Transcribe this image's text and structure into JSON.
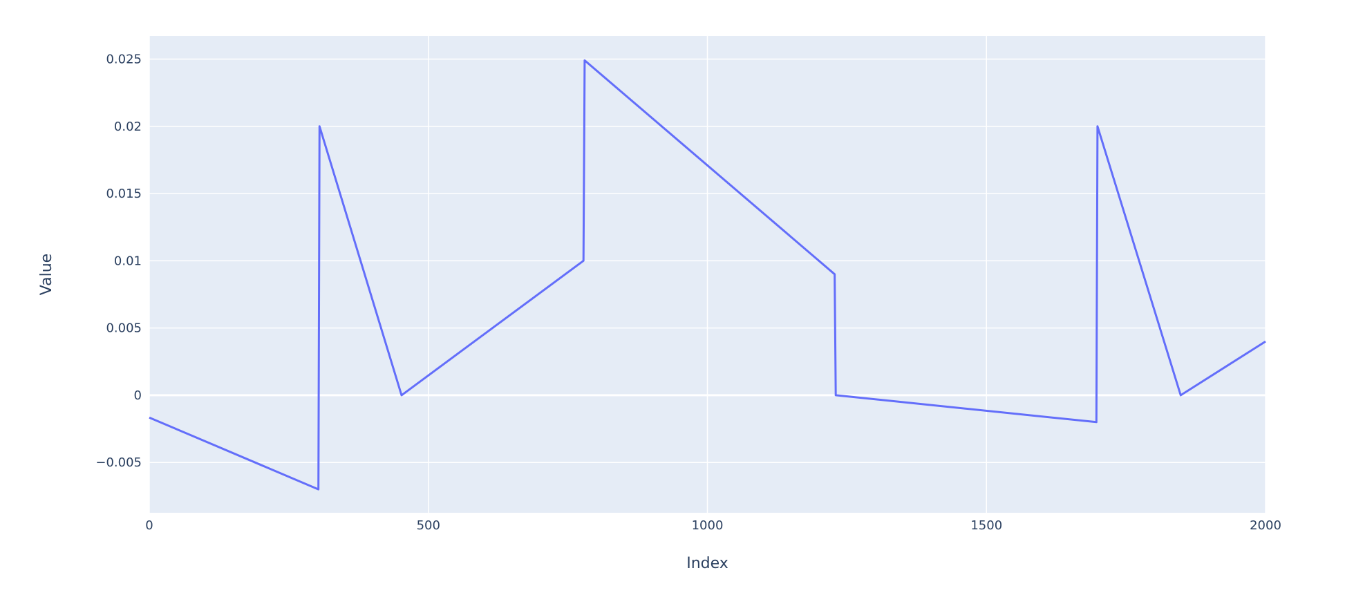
{
  "chart_data": {
    "type": "line",
    "title": "",
    "xlabel": "Index",
    "ylabel": "Value",
    "xlim": [
      0,
      2000
    ],
    "ylim": [
      -0.00874,
      0.02672
    ],
    "xticks": [
      0,
      500,
      1000,
      1500,
      2000
    ],
    "xtick_labels": [
      "0",
      "500",
      "1000",
      "1500",
      "2000"
    ],
    "yticks": [
      -0.005,
      0,
      0.005,
      0.01,
      0.015,
      0.02,
      0.025
    ],
    "ytick_labels": [
      "−0.005",
      "0",
      "0.005",
      "0.01",
      "0.015",
      "0.02",
      "0.025"
    ],
    "grid": true,
    "colors": {
      "plot_bg": "#e5ecf6",
      "grid": "#ffffff",
      "line": "#636efa",
      "text": "#2a3f5f"
    },
    "series": [
      {
        "x": [
          0,
          303,
          305,
          452,
          778,
          780,
          1228,
          1230,
          1697,
          1699,
          1848,
          2000
        ],
        "y": [
          -0.00166,
          -0.007,
          0.02,
          0.0,
          0.01,
          0.0249,
          0.009,
          0.0,
          -0.002,
          0.02,
          0.0,
          0.004
        ]
      }
    ]
  }
}
